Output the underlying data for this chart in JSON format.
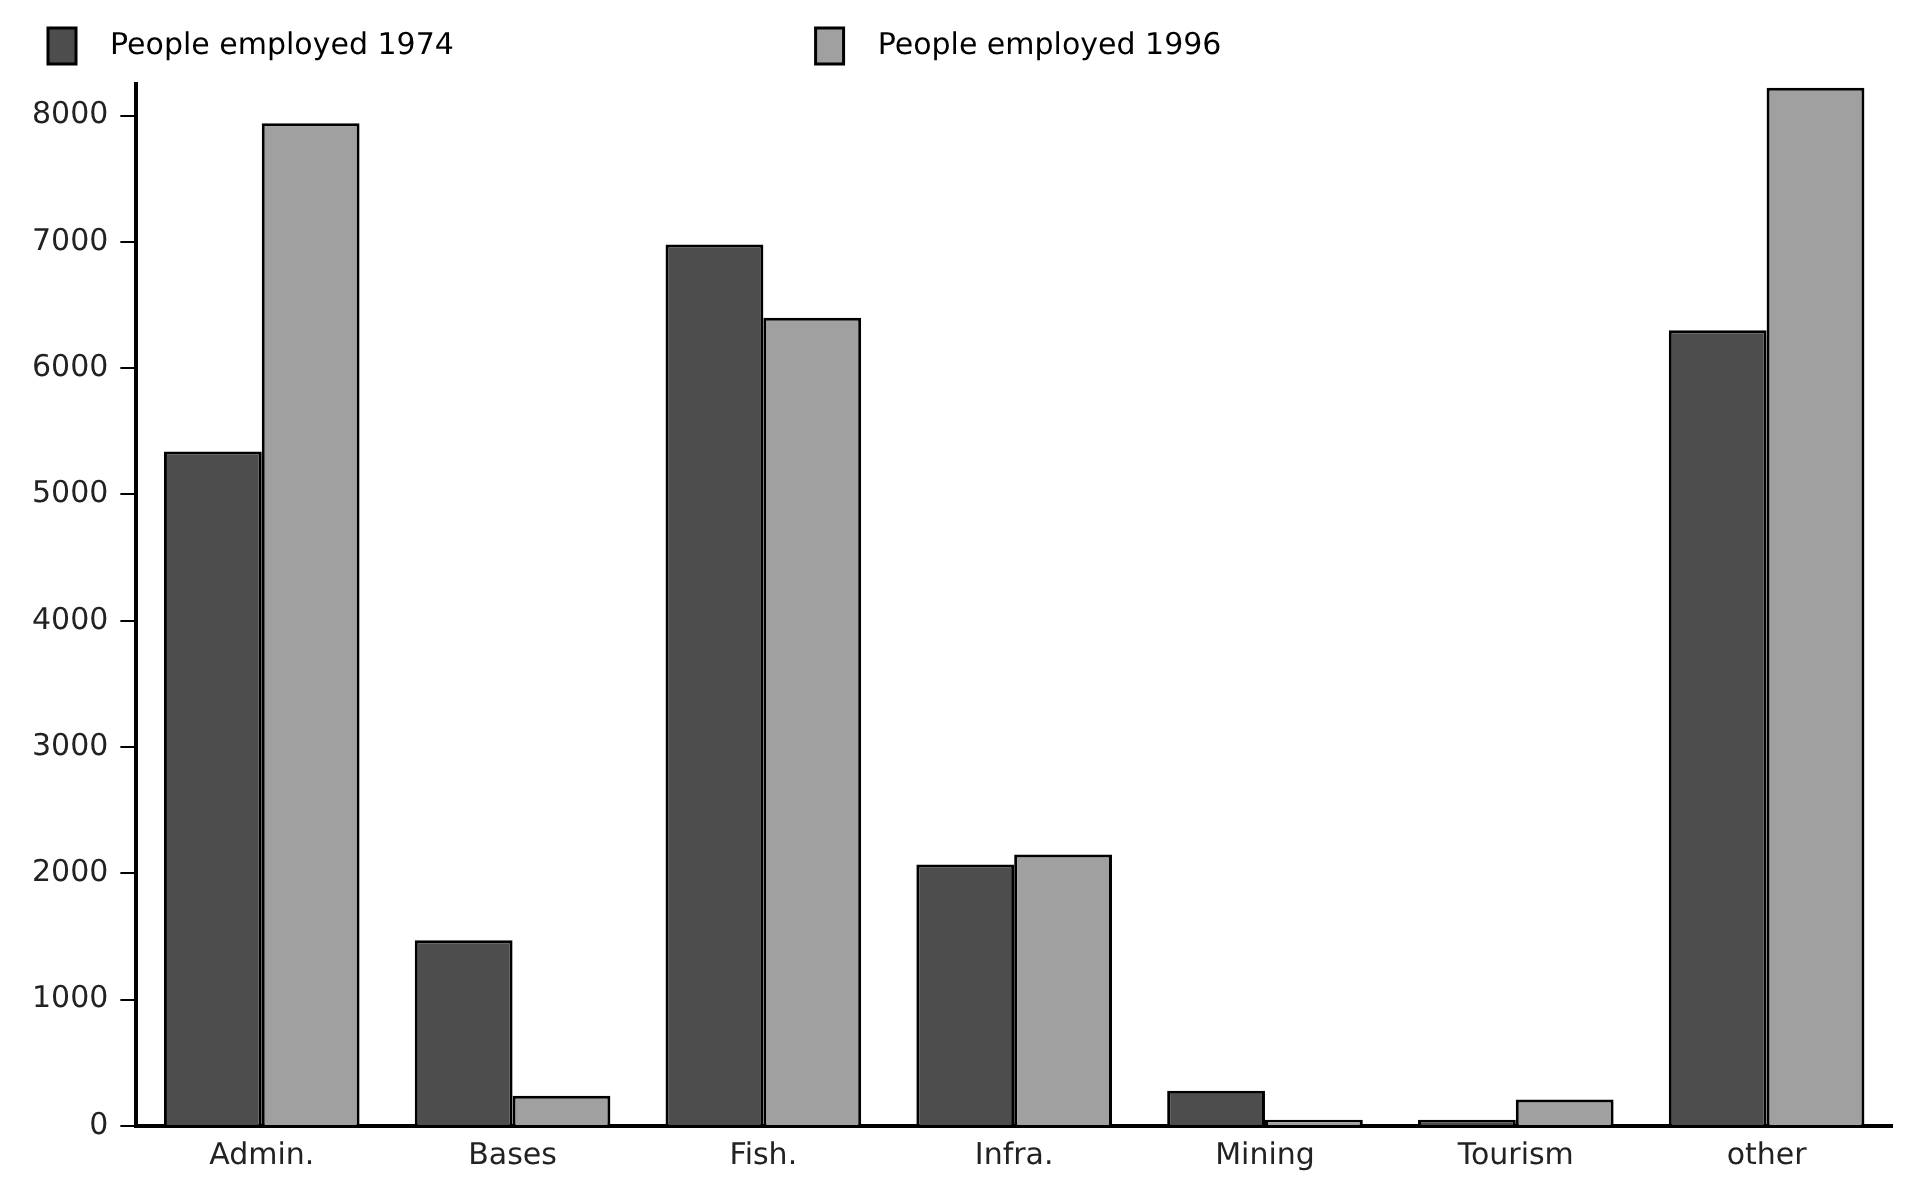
{
  "chart_data": {
    "type": "bar",
    "categories": [
      "Admin.",
      "Bases",
      "Fish.",
      "Infra.",
      "Mining",
      "Tourism",
      "other"
    ],
    "series": [
      {
        "name": "People employed 1974",
        "color": "#4d4d4d",
        "values": [
          5340,
          1470,
          6980,
          2070,
          280,
          50,
          6300
        ]
      },
      {
        "name": "People employed 1996",
        "color": "#a0a0a0",
        "values": [
          7940,
          240,
          6400,
          2150,
          50,
          210,
          8220
        ]
      }
    ],
    "ylim": [
      0,
      8250
    ],
    "yticks": [
      0,
      1000,
      2000,
      3000,
      4000,
      5000,
      6000,
      7000,
      8000
    ],
    "grid": false,
    "legend": "top"
  }
}
